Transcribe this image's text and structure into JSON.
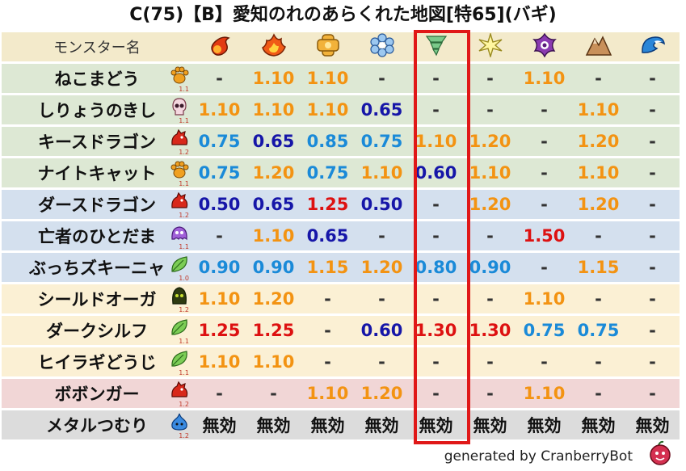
{
  "title": "C(75)【B】愛知のれのあらくれた地図[特65](バギ)",
  "header_label": "モンスター名",
  "footer": "generated by CranberryBot",
  "element_icons": [
    "fire-icon",
    "explosion-icon",
    "ice-icon",
    "snow-icon",
    "wind-icon",
    "light-icon",
    "dark-icon",
    "earth-icon",
    "water-icon"
  ],
  "rows": [
    {
      "name": "ねこまどう",
      "icon": "paw-icon",
      "num": "1.1",
      "bg": "#dde8d4",
      "vals": [
        [
          "-",
          "d"
        ],
        [
          "1.10",
          "o"
        ],
        [
          "1.10",
          "o"
        ],
        [
          "-",
          "d"
        ],
        [
          "-",
          "d"
        ],
        [
          "-",
          "d"
        ],
        [
          "1.10",
          "o"
        ],
        [
          "-",
          "d"
        ],
        [
          "-",
          "d"
        ]
      ]
    },
    {
      "name": "しりょうのきし",
      "icon": "skull-icon",
      "num": "1.1",
      "bg": "#dde8d4",
      "vals": [
        [
          "1.10",
          "o"
        ],
        [
          "1.10",
          "o"
        ],
        [
          "1.10",
          "o"
        ],
        [
          "0.65",
          "n"
        ],
        [
          "-",
          "d"
        ],
        [
          "-",
          "d"
        ],
        [
          "-",
          "d"
        ],
        [
          "1.10",
          "o"
        ],
        [
          "-",
          "d"
        ]
      ]
    },
    {
      "name": "キースドラゴン",
      "icon": "dragon-icon",
      "num": "1.2",
      "bg": "#dde8d4",
      "vals": [
        [
          "0.75",
          "b"
        ],
        [
          "0.65",
          "n"
        ],
        [
          "0.85",
          "b"
        ],
        [
          "0.75",
          "b"
        ],
        [
          "1.10",
          "o"
        ],
        [
          "1.20",
          "o"
        ],
        [
          "-",
          "d"
        ],
        [
          "1.20",
          "o"
        ],
        [
          "-",
          "d"
        ]
      ]
    },
    {
      "name": "ナイトキャット",
      "icon": "paw-icon",
      "num": "1.1",
      "bg": "#dde8d4",
      "vals": [
        [
          "0.75",
          "b"
        ],
        [
          "1.20",
          "o"
        ],
        [
          "0.75",
          "b"
        ],
        [
          "1.10",
          "o"
        ],
        [
          "0.60",
          "n"
        ],
        [
          "1.10",
          "o"
        ],
        [
          "-",
          "d"
        ],
        [
          "1.10",
          "o"
        ],
        [
          "-",
          "d"
        ]
      ]
    },
    {
      "name": "ダースドラゴン",
      "icon": "dragon-icon",
      "num": "1.2",
      "bg": "#d4e0ee",
      "vals": [
        [
          "0.50",
          "n"
        ],
        [
          "0.65",
          "n"
        ],
        [
          "1.25",
          "r"
        ],
        [
          "0.50",
          "n"
        ],
        [
          "-",
          "d"
        ],
        [
          "1.20",
          "o"
        ],
        [
          "-",
          "d"
        ],
        [
          "1.20",
          "o"
        ],
        [
          "-",
          "d"
        ]
      ]
    },
    {
      "name": "亡者のひとだま",
      "icon": "ghost-icon",
      "num": "1.1",
      "bg": "#d4e0ee",
      "vals": [
        [
          "-",
          "d"
        ],
        [
          "1.10",
          "o"
        ],
        [
          "0.65",
          "n"
        ],
        [
          "-",
          "d"
        ],
        [
          "-",
          "d"
        ],
        [
          "-",
          "d"
        ],
        [
          "1.50",
          "r"
        ],
        [
          "-",
          "d"
        ],
        [
          "-",
          "d"
        ]
      ]
    },
    {
      "name": "ぶっちズキーニャ",
      "icon": "leaf-icon",
      "num": "1.0",
      "bg": "#d4e0ee",
      "vals": [
        [
          "0.90",
          "b"
        ],
        [
          "0.90",
          "b"
        ],
        [
          "1.15",
          "o"
        ],
        [
          "1.20",
          "o"
        ],
        [
          "0.80",
          "b"
        ],
        [
          "0.90",
          "b"
        ],
        [
          "-",
          "d"
        ],
        [
          "1.15",
          "o"
        ],
        [
          "-",
          "d"
        ]
      ]
    },
    {
      "name": "シールドオーガ",
      "icon": "hood-icon",
      "num": "1.2",
      "bg": "#fbf0d4",
      "vals": [
        [
          "1.10",
          "o"
        ],
        [
          "1.20",
          "o"
        ],
        [
          "-",
          "d"
        ],
        [
          "-",
          "d"
        ],
        [
          "-",
          "d"
        ],
        [
          "-",
          "d"
        ],
        [
          "1.10",
          "o"
        ],
        [
          "-",
          "d"
        ],
        [
          "-",
          "d"
        ]
      ]
    },
    {
      "name": "ダークシルフ",
      "icon": "leaf-icon",
      "num": "1.1",
      "bg": "#fbf0d4",
      "vals": [
        [
          "1.25",
          "r"
        ],
        [
          "1.25",
          "r"
        ],
        [
          "-",
          "d"
        ],
        [
          "0.60",
          "n"
        ],
        [
          "1.30",
          "r"
        ],
        [
          "1.30",
          "r"
        ],
        [
          "0.75",
          "b"
        ],
        [
          "0.75",
          "b"
        ],
        [
          "-",
          "d"
        ]
      ]
    },
    {
      "name": "ヒイラギどうじ",
      "icon": "leaf-icon",
      "num": "1.1",
      "bg": "#fbf0d4",
      "vals": [
        [
          "1.10",
          "o"
        ],
        [
          "1.10",
          "o"
        ],
        [
          "-",
          "d"
        ],
        [
          "-",
          "d"
        ],
        [
          "-",
          "d"
        ],
        [
          "-",
          "d"
        ],
        [
          "-",
          "d"
        ],
        [
          "-",
          "d"
        ],
        [
          "-",
          "d"
        ]
      ]
    },
    {
      "name": "ボボンガー",
      "icon": "dragon-icon",
      "num": "1.2",
      "bg": "#f1d6d6",
      "vals": [
        [
          "-",
          "d"
        ],
        [
          "-",
          "d"
        ],
        [
          "1.10",
          "o"
        ],
        [
          "1.20",
          "o"
        ],
        [
          "-",
          "d"
        ],
        [
          "-",
          "d"
        ],
        [
          "1.10",
          "o"
        ],
        [
          "-",
          "d"
        ],
        [
          "-",
          "d"
        ]
      ]
    },
    {
      "name": "メタルつむり",
      "icon": "slime-icon",
      "num": "1.2",
      "bg": "#dcdcdc",
      "vals": [
        [
          "無効",
          "k"
        ],
        [
          "無効",
          "k"
        ],
        [
          "無効",
          "k"
        ],
        [
          "無効",
          "k"
        ],
        [
          "無効",
          "k"
        ],
        [
          "無効",
          "k"
        ],
        [
          "無効",
          "k"
        ],
        [
          "無効",
          "k"
        ],
        [
          "無効",
          "k"
        ]
      ]
    }
  ]
}
